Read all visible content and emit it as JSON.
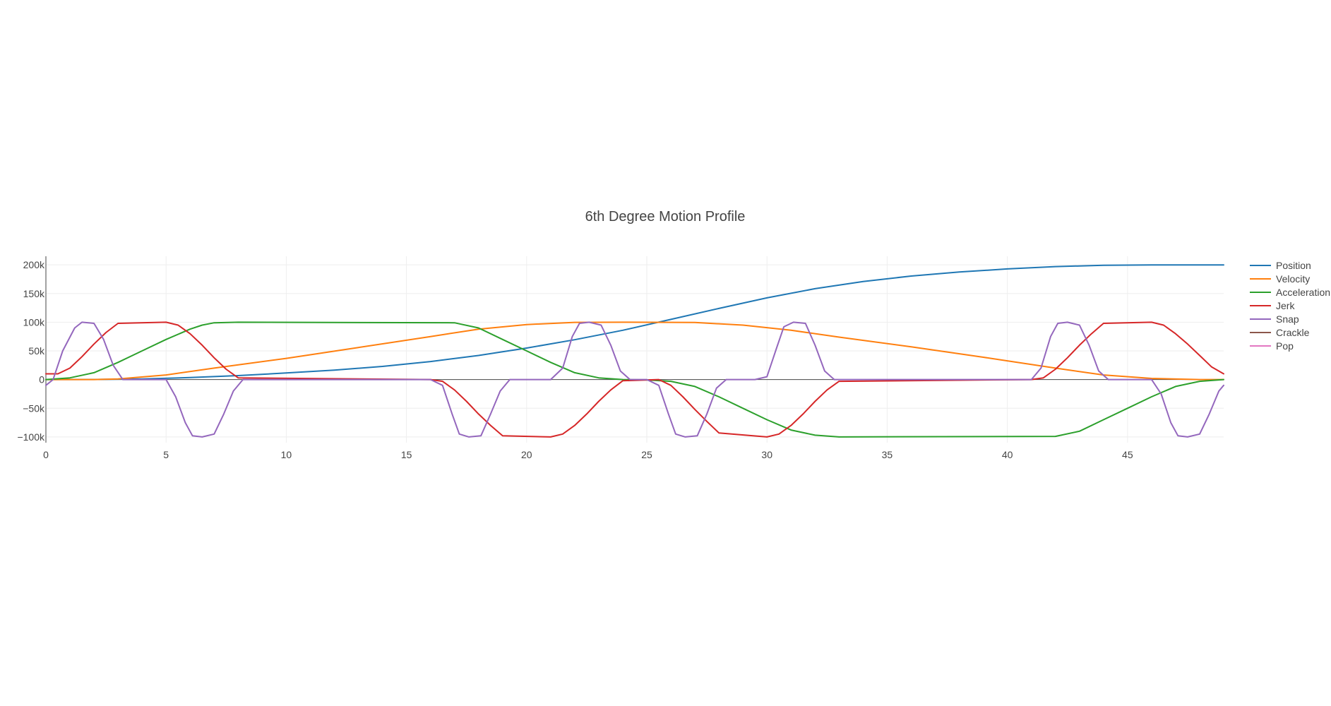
{
  "chart_data": {
    "type": "line",
    "title": "6th Degree Motion Profile",
    "xlabel": "",
    "ylabel": "",
    "xlim": [
      0,
      49
    ],
    "ylim": [
      -110000,
      215000
    ],
    "grid": true,
    "legend_position": "top-right, outside plot",
    "x_ticks": [
      0,
      5,
      10,
      15,
      20,
      25,
      30,
      35,
      40,
      45
    ],
    "x_tick_labels": [
      "0",
      "5",
      "10",
      "15",
      "20",
      "25",
      "30",
      "35",
      "40",
      "45"
    ],
    "y_ticks": [
      -100000,
      -50000,
      0,
      50000,
      100000,
      150000,
      200000
    ],
    "y_tick_labels": [
      "−100k",
      "−50k",
      "0",
      "50k",
      "100k",
      "150k",
      "200k"
    ],
    "series": [
      {
        "name": "Position",
        "color": "#1f77b4",
        "x": [
          0,
          2,
          4,
          6,
          8,
          10,
          12,
          14,
          16,
          18,
          20,
          22,
          24,
          26,
          28,
          30,
          32,
          34,
          36,
          38,
          40,
          42,
          44,
          46,
          48,
          49
        ],
        "y": [
          0,
          200,
          1200,
          3500,
          7000,
          11500,
          16500,
          23000,
          31500,
          42000,
          55000,
          69500,
          86000,
          105000,
          124000,
          142500,
          158500,
          171000,
          180500,
          187500,
          193000,
          197000,
          199300,
          200000,
          200000,
          200000
        ]
      },
      {
        "name": "Velocity",
        "color": "#ff7f0e",
        "x": [
          0,
          2,
          3,
          5,
          7,
          10,
          13,
          16,
          18,
          20,
          22,
          24,
          27,
          29,
          31,
          33,
          36,
          39,
          42,
          44,
          46,
          48,
          49
        ],
        "y": [
          0,
          0,
          1000,
          8000,
          20000,
          37000,
          56000,
          75000,
          88000,
          96000,
          99800,
          100000,
          99500,
          95000,
          86000,
          74000,
          57000,
          39000,
          20000,
          8000,
          2000,
          0,
          0
        ]
      },
      {
        "name": "Acceleration",
        "color": "#2ca02c",
        "x": [
          0,
          1,
          2,
          3,
          4,
          5,
          6,
          6.5,
          7,
          8,
          17,
          18,
          19,
          20,
          21,
          22,
          23,
          24,
          25,
          26,
          27,
          28,
          29,
          30,
          31,
          32,
          33,
          42,
          43,
          44,
          45,
          46,
          47,
          48,
          49
        ],
        "y": [
          0,
          3000,
          12000,
          30000,
          50000,
          70000,
          88000,
          95000,
          99000,
          100000,
          99000,
          90000,
          70000,
          50000,
          30000,
          12000,
          3000,
          0,
          -500,
          -3000,
          -12000,
          -30000,
          -50000,
          -70000,
          -88000,
          -97000,
          -100000,
          -99000,
          -90000,
          -70000,
          -50000,
          -30000,
          -12000,
          -3000,
          0
        ]
      },
      {
        "name": "Jerk",
        "color": "#d62728",
        "x": [
          0,
          0.5,
          1,
          1.5,
          2,
          2.5,
          3,
          5,
          5.5,
          6,
          6.5,
          7,
          7.5,
          8,
          16,
          16.5,
          17,
          17.5,
          18,
          18.5,
          19,
          21,
          21.5,
          22,
          22.5,
          23,
          23.5,
          24,
          25.5,
          26,
          26.5,
          27,
          27.5,
          28,
          30,
          30.5,
          31,
          31.5,
          32,
          32.5,
          33,
          41,
          41.5,
          42,
          42.5,
          43,
          43.5,
          44,
          46,
          46.5,
          47,
          47.5,
          48,
          48.5,
          49
        ],
        "y": [
          10000,
          10000,
          20000,
          40000,
          62000,
          82000,
          98000,
          100000,
          95000,
          80000,
          60000,
          38000,
          18000,
          3000,
          0,
          -3000,
          -18000,
          -38000,
          -60000,
          -80000,
          -98000,
          -100000,
          -95000,
          -80000,
          -60000,
          -38000,
          -18000,
          -2000,
          0,
          -10000,
          -30000,
          -52000,
          -73000,
          -93000,
          -100000,
          -95000,
          -80000,
          -60000,
          -38000,
          -18000,
          -3000,
          0,
          3000,
          18000,
          38000,
          60000,
          80000,
          98000,
          100000,
          95000,
          80000,
          62000,
          42000,
          22000,
          10000
        ]
      },
      {
        "name": "Snap",
        "color": "#9467bd",
        "x": [
          0,
          0.3,
          0.7,
          1.2,
          1.5,
          2.0,
          2.4,
          2.8,
          3.2,
          5,
          5.4,
          5.8,
          6.1,
          6.5,
          7,
          7.4,
          7.8,
          8.2,
          16,
          16.5,
          16.9,
          17.2,
          17.6,
          18.1,
          18.5,
          18.9,
          19.3,
          21,
          21.5,
          21.9,
          22.2,
          22.6,
          23.1,
          23.5,
          23.9,
          24.3,
          25,
          25.5,
          25.9,
          26.2,
          26.6,
          27.1,
          27.5,
          27.9,
          28.3,
          29.5,
          30,
          30.4,
          30.7,
          31.1,
          31.6,
          32,
          32.4,
          32.8,
          41,
          41.4,
          41.8,
          42.1,
          42.5,
          43,
          43.4,
          43.8,
          44.2,
          46,
          46.4,
          46.8,
          47.1,
          47.5,
          48,
          48.4,
          48.8,
          49
        ],
        "y": [
          -10000,
          0,
          50000,
          90000,
          100000,
          98000,
          70000,
          25000,
          0,
          0,
          -30000,
          -75000,
          -98000,
          -100000,
          -95000,
          -60000,
          -20000,
          0,
          0,
          -10000,
          -60000,
          -95000,
          -100000,
          -98000,
          -60000,
          -20000,
          0,
          0,
          20000,
          75000,
          98000,
          100000,
          95000,
          60000,
          15000,
          0,
          0,
          -10000,
          -60000,
          -95000,
          -100000,
          -98000,
          -60000,
          -15000,
          0,
          0,
          5000,
          55000,
          92000,
          100000,
          98000,
          60000,
          15000,
          0,
          0,
          20000,
          75000,
          98000,
          100000,
          95000,
          60000,
          15000,
          0,
          0,
          -25000,
          -75000,
          -98000,
          -100000,
          -95000,
          -60000,
          -20000,
          -10000
        ]
      },
      {
        "name": "Crackle",
        "color": "#8c564b",
        "x": [],
        "y": []
      },
      {
        "name": "Pop",
        "color": "#e377c2",
        "x": [],
        "y": []
      }
    ]
  }
}
